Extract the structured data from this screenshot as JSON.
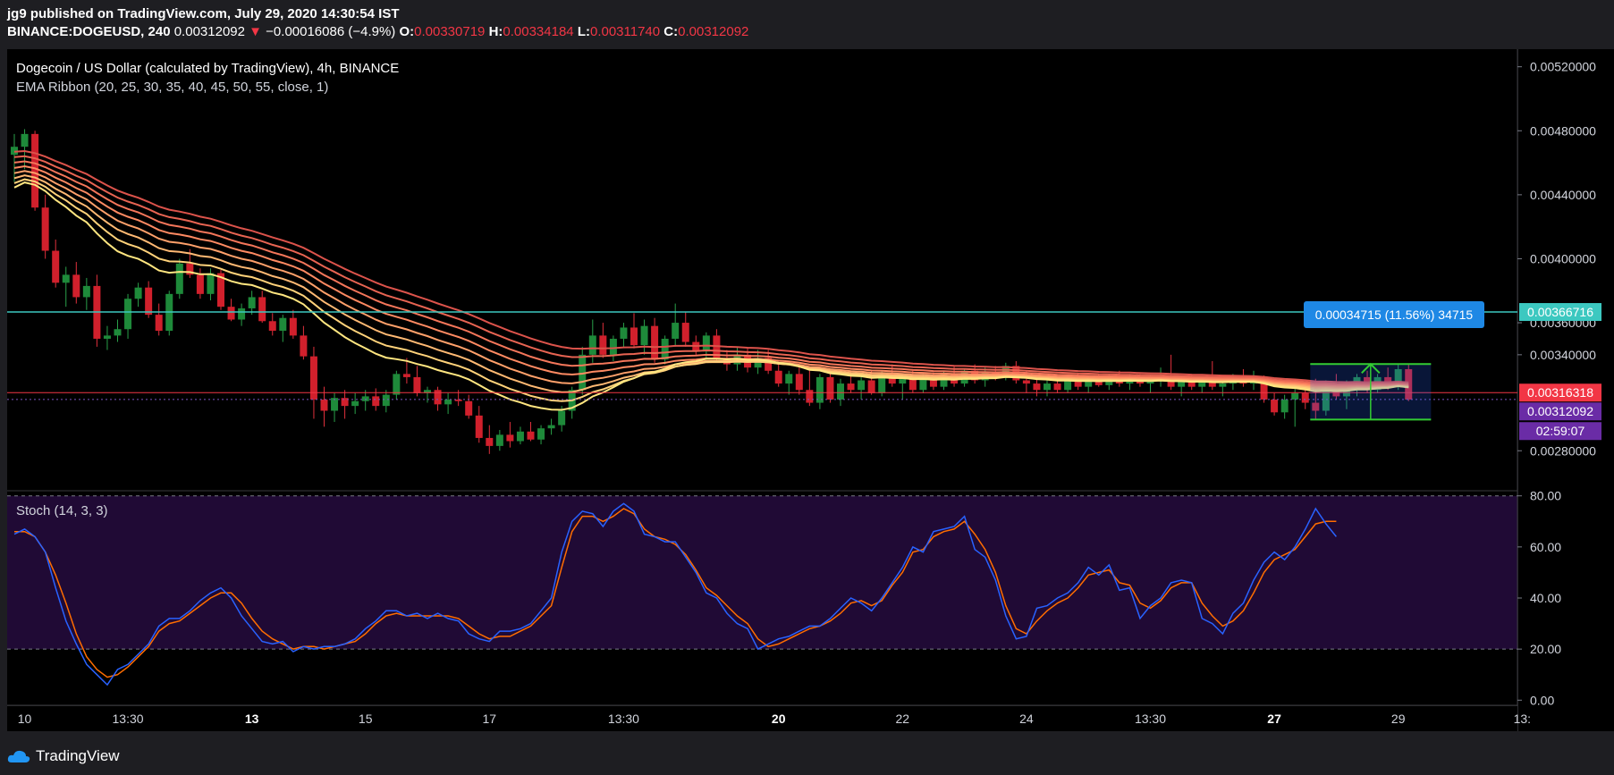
{
  "header": {
    "publisher_line": "jg9 published on TradingView.com, July 29, 2020 14:30:54 IST",
    "symbol": "BINANCE:DOGEUSD, 240",
    "last": "0.00312092",
    "change_arrow": "▼",
    "change": "−0.00016086 (−4.9%)",
    "o_label": "O:",
    "o_value": "0.00330719",
    "h_label": "H:",
    "h_value": "0.00334184",
    "l_label": "L:",
    "l_value": "0.00311740",
    "c_label": "C:",
    "c_value": "0.00312092"
  },
  "legend": {
    "title": "Dogecoin / US Dollar (calculated by TradingView), 4h, BINANCE",
    "indicator": "EMA Ribbon (20, 25, 30, 35, 40, 45, 50, 55, close, 1)",
    "stoch": "Stoch (14, 3, 3)"
  },
  "measure_label": "0.00034715 (11.56%) 34715",
  "price_tags": {
    "horizontal_line": "0.00366716",
    "ema": "0.00316318",
    "last": "0.00312092",
    "countdown": "02:59:07"
  },
  "footer": {
    "brand": "TradingView"
  },
  "colors": {
    "up": "#26a69a",
    "down": "#f23645",
    "cyan_line": "#3cc8c0",
    "stoch_k": "#2962ff",
    "stoch_d": "#ff6d00",
    "stoch_bg": "#200a35",
    "label_blue": "#1e88e5",
    "tag_purple": "#6a2ca6",
    "measure_green": "#33cc33"
  },
  "chart_data": [
    {
      "type": "candlestick",
      "title": "Dogecoin / US Dollar (calculated by TradingView), 4h, BINANCE",
      "y_ticks": [
        "0.00520000",
        "0.00480000",
        "0.00440000",
        "0.00400000",
        "0.00360000",
        "0.00340000",
        "0.00280000"
      ],
      "ylim": [
        0.00255,
        0.00531
      ],
      "x_ticks": [
        "10",
        "13:30",
        "13",
        "15",
        "17",
        "13:30",
        "20",
        "22",
        "24",
        "13:30",
        "27",
        "29",
        "13:"
      ],
      "x_tick_index": [
        1,
        11,
        23,
        34,
        46,
        59,
        74,
        86,
        98,
        110,
        122,
        134,
        146
      ],
      "horizontal_line": 0.00366716,
      "ohlc": [
        [
          0.00465,
          0.00478,
          0.00448,
          0.0047
        ],
        [
          0.0047,
          0.00481,
          0.00456,
          0.00478
        ],
        [
          0.00478,
          0.0048,
          0.0043,
          0.00432
        ],
        [
          0.00432,
          0.0044,
          0.004,
          0.00405
        ],
        [
          0.00405,
          0.00412,
          0.00382,
          0.00385
        ],
        [
          0.00385,
          0.00395,
          0.0037,
          0.0039
        ],
        [
          0.0039,
          0.00398,
          0.00372,
          0.00376
        ],
        [
          0.00376,
          0.00388,
          0.00368,
          0.00383
        ],
        [
          0.00383,
          0.0039,
          0.00345,
          0.0035
        ],
        [
          0.0035,
          0.00358,
          0.00343,
          0.00352
        ],
        [
          0.00352,
          0.00362,
          0.00348,
          0.00356
        ],
        [
          0.00356,
          0.00378,
          0.0035,
          0.00375
        ],
        [
          0.00375,
          0.00385,
          0.0037,
          0.00382
        ],
        [
          0.00382,
          0.00386,
          0.00363,
          0.00365
        ],
        [
          0.00365,
          0.00372,
          0.00352,
          0.00355
        ],
        [
          0.00355,
          0.0038,
          0.00352,
          0.00378
        ],
        [
          0.00378,
          0.004,
          0.00375,
          0.00397
        ],
        [
          0.00397,
          0.00406,
          0.00388,
          0.0039
        ],
        [
          0.0039,
          0.00394,
          0.00375,
          0.00378
        ],
        [
          0.00378,
          0.00394,
          0.00374,
          0.00391
        ],
        [
          0.00391,
          0.00393,
          0.00368,
          0.0037
        ],
        [
          0.0037,
          0.00375,
          0.00361,
          0.00362
        ],
        [
          0.00362,
          0.00372,
          0.00358,
          0.00369
        ],
        [
          0.00369,
          0.0038,
          0.00365,
          0.00376
        ],
        [
          0.00376,
          0.0038,
          0.0036,
          0.00361
        ],
        [
          0.00361,
          0.00366,
          0.00352,
          0.00355
        ],
        [
          0.00355,
          0.00365,
          0.00348,
          0.00363
        ],
        [
          0.00363,
          0.00368,
          0.0035,
          0.00352
        ],
        [
          0.00352,
          0.00358,
          0.00337,
          0.00339
        ],
        [
          0.00339,
          0.00345,
          0.003,
          0.00312
        ],
        [
          0.00312,
          0.0032,
          0.00295,
          0.00305
        ],
        [
          0.00305,
          0.00316,
          0.00298,
          0.00313
        ],
        [
          0.00313,
          0.00318,
          0.003,
          0.00308
        ],
        [
          0.00308,
          0.00316,
          0.00303,
          0.00311
        ],
        [
          0.00311,
          0.00318,
          0.00305,
          0.00314
        ],
        [
          0.00314,
          0.00319,
          0.00305,
          0.00308
        ],
        [
          0.00308,
          0.00318,
          0.00304,
          0.00315
        ],
        [
          0.00315,
          0.0033,
          0.00312,
          0.00328
        ],
        [
          0.00328,
          0.00338,
          0.00322,
          0.00326
        ],
        [
          0.00326,
          0.00333,
          0.00314,
          0.00316
        ],
        [
          0.00316,
          0.0032,
          0.0031,
          0.00318
        ],
        [
          0.00318,
          0.0032,
          0.00305,
          0.00309
        ],
        [
          0.00309,
          0.00316,
          0.00303,
          0.00312
        ],
        [
          0.00312,
          0.00318,
          0.00308,
          0.00311
        ],
        [
          0.00311,
          0.00315,
          0.003,
          0.00302
        ],
        [
          0.00302,
          0.00308,
          0.00285,
          0.00288
        ],
        [
          0.00288,
          0.00296,
          0.00278,
          0.00283
        ],
        [
          0.00283,
          0.00293,
          0.0028,
          0.0029
        ],
        [
          0.0029,
          0.00298,
          0.00282,
          0.00286
        ],
        [
          0.00286,
          0.00295,
          0.00284,
          0.00292
        ],
        [
          0.00292,
          0.00298,
          0.00286,
          0.00287
        ],
        [
          0.00287,
          0.00296,
          0.00284,
          0.00294
        ],
        [
          0.00294,
          0.003,
          0.0029,
          0.00296
        ],
        [
          0.00296,
          0.00308,
          0.00292,
          0.00305
        ],
        [
          0.00305,
          0.0032,
          0.003,
          0.00318
        ],
        [
          0.00318,
          0.00345,
          0.00315,
          0.0034
        ],
        [
          0.0034,
          0.00362,
          0.00335,
          0.00352
        ],
        [
          0.00352,
          0.0036,
          0.00338,
          0.0034
        ],
        [
          0.0034,
          0.00352,
          0.00336,
          0.0035
        ],
        [
          0.0035,
          0.0036,
          0.00345,
          0.00357
        ],
        [
          0.00357,
          0.00366,
          0.00344,
          0.00346
        ],
        [
          0.00346,
          0.00362,
          0.0034,
          0.00358
        ],
        [
          0.00358,
          0.00363,
          0.00335,
          0.00337
        ],
        [
          0.00337,
          0.00352,
          0.00334,
          0.0035
        ],
        [
          0.0035,
          0.00372,
          0.00345,
          0.0036
        ],
        [
          0.0036,
          0.00367,
          0.00345,
          0.00348
        ],
        [
          0.00348,
          0.00352,
          0.0034,
          0.00342
        ],
        [
          0.00342,
          0.00354,
          0.00337,
          0.00352
        ],
        [
          0.00352,
          0.00356,
          0.00335,
          0.00337
        ],
        [
          0.00337,
          0.00343,
          0.0033,
          0.00334
        ],
        [
          0.00334,
          0.00345,
          0.0033,
          0.0034
        ],
        [
          0.0034,
          0.00344,
          0.00329,
          0.00332
        ],
        [
          0.00332,
          0.00343,
          0.00328,
          0.00338
        ],
        [
          0.00338,
          0.00343,
          0.00328,
          0.0033
        ],
        [
          0.0033,
          0.00334,
          0.0032,
          0.00322
        ],
        [
          0.00322,
          0.0033,
          0.00315,
          0.00328
        ],
        [
          0.00328,
          0.00332,
          0.00315,
          0.00318
        ],
        [
          0.00318,
          0.0033,
          0.00308,
          0.0031
        ],
        [
          0.0031,
          0.00328,
          0.00306,
          0.00326
        ],
        [
          0.00326,
          0.0033,
          0.0031,
          0.00312
        ],
        [
          0.00312,
          0.00325,
          0.00308,
          0.00322
        ],
        [
          0.00322,
          0.0033,
          0.00316,
          0.00318
        ],
        [
          0.00318,
          0.00326,
          0.00312,
          0.00324
        ],
        [
          0.00324,
          0.0033,
          0.00315,
          0.00316
        ],
        [
          0.00316,
          0.0033,
          0.00314,
          0.00328
        ],
        [
          0.00328,
          0.00334,
          0.0032,
          0.00322
        ],
        [
          0.00322,
          0.00328,
          0.00312,
          0.00325
        ],
        [
          0.00325,
          0.0033,
          0.00316,
          0.00318
        ],
        [
          0.00318,
          0.00328,
          0.00316,
          0.00326
        ],
        [
          0.00326,
          0.00329,
          0.00318,
          0.0032
        ],
        [
          0.0032,
          0.0033,
          0.00318,
          0.00328
        ],
        [
          0.00328,
          0.00333,
          0.0032,
          0.00322
        ],
        [
          0.00322,
          0.00331,
          0.0032,
          0.0033
        ],
        [
          0.0033,
          0.00334,
          0.00322,
          0.00324
        ],
        [
          0.00324,
          0.00332,
          0.0032,
          0.00329
        ],
        [
          0.00329,
          0.00333,
          0.00324,
          0.00326
        ],
        [
          0.00326,
          0.00335,
          0.00324,
          0.00333
        ],
        [
          0.00333,
          0.00336,
          0.00322,
          0.00324
        ],
        [
          0.00324,
          0.0033,
          0.00316,
          0.00322
        ],
        [
          0.00322,
          0.00325,
          0.00314,
          0.00318
        ],
        [
          0.00318,
          0.00324,
          0.00314,
          0.00322
        ],
        [
          0.00322,
          0.00326,
          0.00316,
          0.00318
        ],
        [
          0.00318,
          0.00326,
          0.00316,
          0.00324
        ],
        [
          0.00324,
          0.00328,
          0.00318,
          0.0032
        ],
        [
          0.0032,
          0.00327,
          0.00316,
          0.00325
        ],
        [
          0.00325,
          0.00328,
          0.0032,
          0.00321
        ],
        [
          0.00321,
          0.00328,
          0.00318,
          0.00326
        ],
        [
          0.00326,
          0.0033,
          0.0032,
          0.00322
        ],
        [
          0.00322,
          0.00328,
          0.00318,
          0.00326
        ],
        [
          0.00326,
          0.00328,
          0.0032,
          0.00322
        ],
        [
          0.00322,
          0.00327,
          0.00316,
          0.00324
        ],
        [
          0.00324,
          0.00332,
          0.0032,
          0.00326
        ],
        [
          0.00326,
          0.0034,
          0.00318,
          0.0032
        ],
        [
          0.0032,
          0.00325,
          0.00314,
          0.00323
        ],
        [
          0.00323,
          0.00328,
          0.00318,
          0.0032
        ],
        [
          0.0032,
          0.00326,
          0.00316,
          0.00324
        ],
        [
          0.00324,
          0.00336,
          0.00318,
          0.0032
        ],
        [
          0.0032,
          0.00326,
          0.00314,
          0.00322
        ],
        [
          0.00322,
          0.00328,
          0.00318,
          0.00326
        ],
        [
          0.00326,
          0.00331,
          0.0032,
          0.00322
        ],
        [
          0.00322,
          0.0033,
          0.00318,
          0.00324
        ],
        [
          0.00324,
          0.00327,
          0.0031,
          0.00312
        ],
        [
          0.00312,
          0.00316,
          0.00302,
          0.00304
        ],
        [
          0.00304,
          0.00315,
          0.003,
          0.00312
        ],
        [
          0.00312,
          0.0032,
          0.00295,
          0.00316
        ],
        [
          0.00316,
          0.00322,
          0.00306,
          0.0031
        ],
        [
          0.0031,
          0.00325,
          0.003,
          0.00305
        ],
        [
          0.00305,
          0.00324,
          0.00302,
          0.00322
        ],
        [
          0.00322,
          0.00328,
          0.00312,
          0.00314
        ],
        [
          0.00314,
          0.00324,
          0.00306,
          0.0032
        ],
        [
          0.0032,
          0.00328,
          0.00314,
          0.00326
        ],
        [
          0.00326,
          0.0033,
          0.00316,
          0.00318
        ],
        [
          0.00318,
          0.00328,
          0.00316,
          0.00326
        ],
        [
          0.00326,
          0.00332,
          0.00318,
          0.00322
        ],
        [
          0.00322,
          0.00334,
          0.00318,
          0.00331
        ],
        [
          0.00331,
          0.00334,
          0.00311,
          0.00312
        ]
      ]
    },
    {
      "type": "line",
      "title": "Stoch (14, 3, 3)",
      "y_ticks": [
        "80.00",
        "60.00",
        "40.00",
        "20.00",
        "0.00"
      ],
      "ylim": [
        -2,
        82
      ],
      "series": [
        {
          "name": "%K",
          "color": "#2962ff",
          "values": [
            65,
            67,
            64,
            58,
            44,
            31,
            22,
            14,
            10,
            6,
            12,
            14,
            18,
            22,
            29,
            32,
            32,
            35,
            39,
            42,
            44,
            40,
            33,
            28,
            23,
            22,
            23,
            19,
            21,
            20,
            21,
            21,
            22,
            24,
            28,
            31,
            35,
            35,
            33,
            34,
            32,
            34,
            32,
            31,
            26,
            24,
            23,
            27,
            27,
            28,
            30,
            35,
            40,
            58,
            70,
            74,
            73,
            68,
            74,
            77,
            74,
            65,
            64,
            62,
            62,
            56,
            50,
            42,
            40,
            34,
            30,
            28,
            20,
            22,
            24,
            25,
            27,
            29,
            29,
            32,
            36,
            40,
            38,
            35,
            40,
            46,
            52,
            60,
            58,
            66,
            67,
            68,
            72,
            59,
            56,
            47,
            33,
            24,
            25,
            36,
            37,
            40,
            42,
            46,
            52,
            49,
            53,
            43,
            44,
            32,
            37,
            40,
            46,
            47,
            46,
            32,
            30,
            26,
            34,
            38,
            47,
            54,
            58,
            55,
            60,
            67,
            75,
            69,
            64
          ]
        },
        {
          "name": "%D",
          "color": "#ff6d00",
          "values": [
            66,
            66,
            64,
            58,
            49,
            38,
            26,
            17,
            12,
            9,
            10,
            13,
            17,
            21,
            27,
            30,
            31,
            34,
            37,
            40,
            42,
            42,
            38,
            32,
            27,
            24,
            22,
            20,
            21,
            21,
            20,
            21,
            22,
            23,
            26,
            30,
            33,
            34,
            33,
            33,
            33,
            33,
            33,
            32,
            29,
            26,
            24,
            25,
            25,
            27,
            29,
            33,
            37,
            52,
            66,
            72,
            72,
            70,
            72,
            75,
            73,
            67,
            64,
            63,
            61,
            57,
            51,
            44,
            41,
            37,
            33,
            30,
            24,
            21,
            22,
            24,
            26,
            28,
            29,
            31,
            34,
            38,
            39,
            37,
            39,
            45,
            50,
            58,
            59,
            64,
            66,
            67,
            70,
            65,
            59,
            50,
            37,
            28,
            26,
            31,
            35,
            38,
            40,
            44,
            49,
            50,
            51,
            46,
            45,
            38,
            36,
            39,
            44,
            46,
            46,
            38,
            33,
            29,
            31,
            35,
            42,
            50,
            55,
            57,
            59,
            64,
            69,
            70,
            70
          ]
        }
      ]
    }
  ]
}
